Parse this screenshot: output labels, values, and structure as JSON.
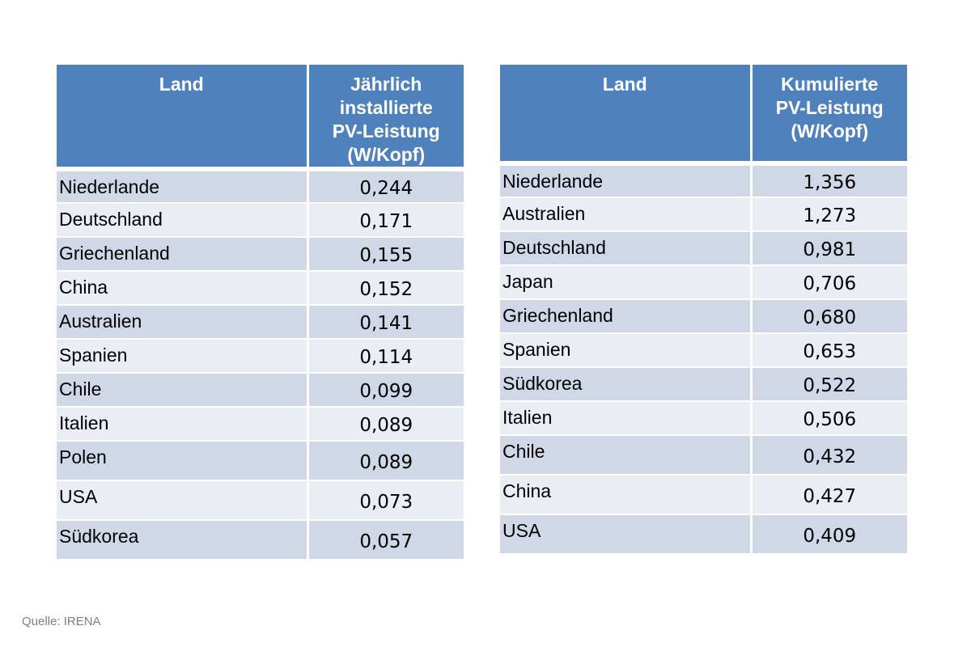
{
  "chart_data": [
    {
      "type": "table",
      "columns": [
        "Land",
        "Jährlich installierte PV-Leistung (W/Kopf)"
      ],
      "rows": [
        [
          "Niederlande",
          "0,244"
        ],
        [
          "Deutschland",
          "0,171"
        ],
        [
          "Griechenland",
          "0,155"
        ],
        [
          "China",
          "0,152"
        ],
        [
          "Australien",
          "0,141"
        ],
        [
          "Spanien",
          "0,114"
        ],
        [
          "Chile",
          "0,099"
        ],
        [
          "Italien",
          "0,089"
        ],
        [
          "Polen",
          "0,089"
        ],
        [
          "USA",
          "0,073"
        ],
        [
          "Südkorea",
          "0,057"
        ]
      ]
    },
    {
      "type": "table",
      "columns": [
        "Land",
        "Kumulierte PV-Leistung (W/Kopf)"
      ],
      "rows": [
        [
          "Niederlande",
          "1,356"
        ],
        [
          "Australien",
          "1,273"
        ],
        [
          "Deutschland",
          "0,981"
        ],
        [
          "Japan",
          "0,706"
        ],
        [
          "Griechenland",
          "0,680"
        ],
        [
          "Spanien",
          "0,653"
        ],
        [
          "Südkorea",
          "0,522"
        ],
        [
          "Italien",
          "0,506"
        ],
        [
          "Chile",
          "0,432"
        ],
        [
          "China",
          "0,427"
        ],
        [
          "USA",
          "0,409"
        ]
      ]
    }
  ],
  "header_lines": [
    [
      [
        "Land"
      ],
      [
        "Jährlich",
        "installierte",
        "PV-Leistung",
        "(W/Kopf)"
      ]
    ],
    [
      [
        "Land"
      ],
      [
        "Kumulierte",
        "PV-Leistung",
        "(W/Kopf)"
      ]
    ]
  ],
  "colors": {
    "header_bg": "#4f81bd",
    "row_odd": "#d0d8e8",
    "row_even": "#e9edf4",
    "source_text": "#7f7f7f"
  },
  "source": "Quelle: IRENA"
}
